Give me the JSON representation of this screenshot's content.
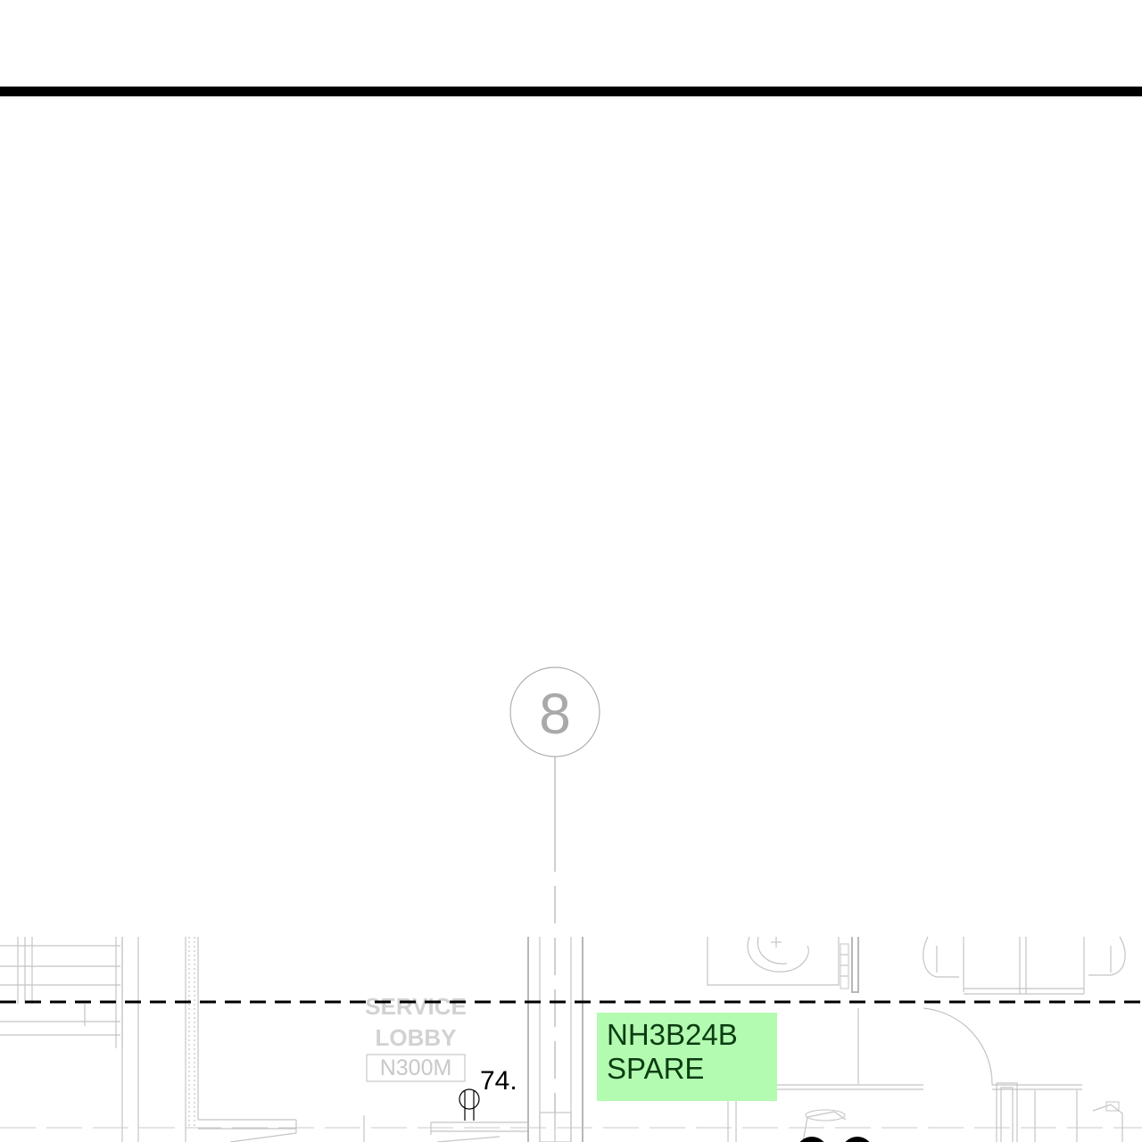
{
  "grid_bubble": {
    "number": "8"
  },
  "room": {
    "label_line1": "SERVICE",
    "label_line2": "LOBBY",
    "number": "N300M"
  },
  "marker": {
    "text": "74."
  },
  "highlight": {
    "line1": "NH3B24B",
    "line2": "SPARE",
    "color": "#b3fbb1",
    "text_color": "#0c3d12"
  },
  "colors": {
    "border": "#000000",
    "plan_lines": "#c4c4c4",
    "grid_text": "#a9a9a9"
  }
}
